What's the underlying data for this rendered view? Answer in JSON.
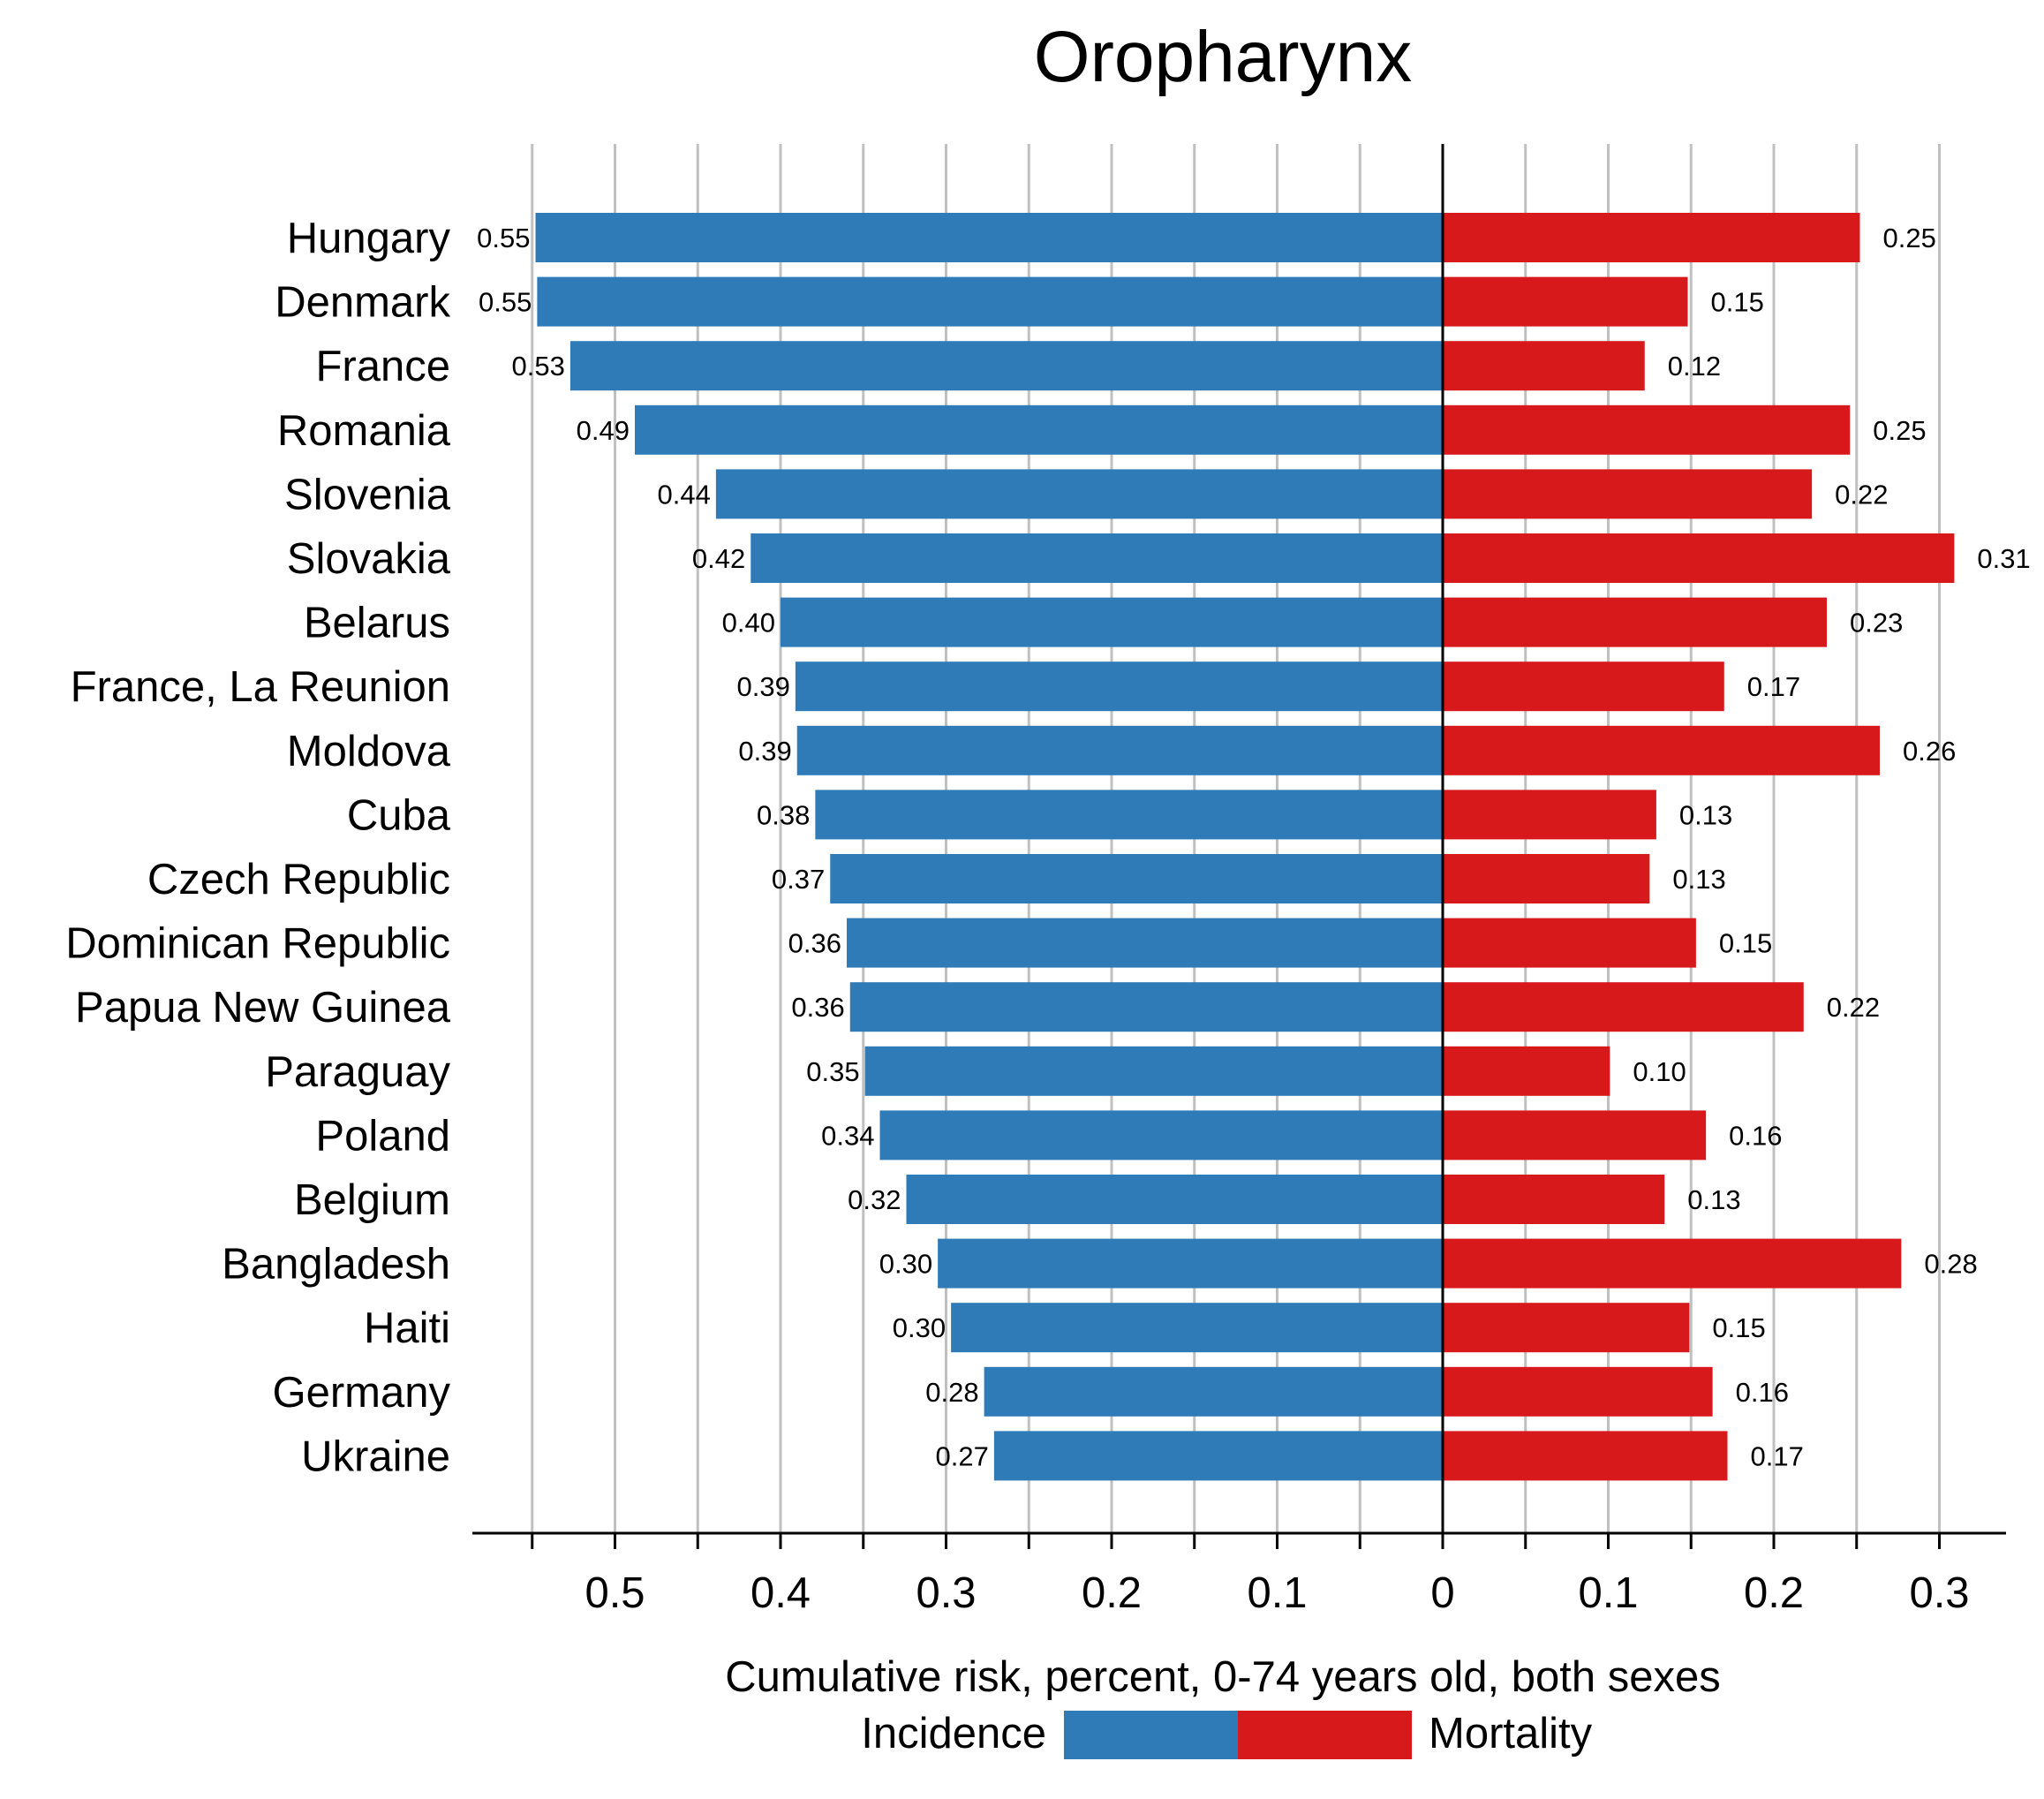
{
  "chart_data": {
    "type": "bar",
    "orientation": "horizontal-diverging",
    "title": "Oropharynx",
    "xlabel": "Cumulative risk, percent, 0-74 years old, both sexes",
    "categories": [
      "Hungary",
      "Denmark",
      "France",
      "Romania",
      "Slovenia",
      "Slovakia",
      "Belarus",
      "France, La Reunion",
      "Moldova",
      "Cuba",
      "Czech Republic",
      "Dominican Republic",
      "Papua New Guinea",
      "Paraguay",
      "Poland",
      "Belgium",
      "Bangladesh",
      "Haiti",
      "Germany",
      "Ukraine"
    ],
    "series": [
      {
        "name": "Incidence",
        "side": "left",
        "color": "#2e7bb8",
        "values": [
          0.548,
          0.547,
          0.527,
          0.488,
          0.439,
          0.418,
          0.4,
          0.391,
          0.39,
          0.379,
          0.37,
          0.36,
          0.358,
          0.349,
          0.34,
          0.324,
          0.305,
          0.297,
          0.277,
          0.271
        ],
        "labels": [
          "0.55",
          "0.55",
          "0.53",
          "0.49",
          "0.44",
          "0.42",
          "0.40",
          "0.39",
          "0.39",
          "0.38",
          "0.37",
          "0.36",
          "0.36",
          "0.35",
          "0.34",
          "0.32",
          "0.30",
          "0.30",
          "0.28",
          "0.27"
        ]
      },
      {
        "name": "Mortality",
        "side": "right",
        "color": "#d7191c",
        "values": [
          0.252,
          0.148,
          0.122,
          0.246,
          0.223,
          0.309,
          0.232,
          0.17,
          0.264,
          0.129,
          0.125,
          0.153,
          0.218,
          0.101,
          0.159,
          0.134,
          0.277,
          0.149,
          0.163,
          0.172
        ],
        "labels": [
          "0.25",
          "0.15",
          "0.12",
          "0.25",
          "0.22",
          "0.31",
          "0.23",
          "0.17",
          "0.26",
          "0.13",
          "0.13",
          "0.15",
          "0.22",
          "0.10",
          "0.16",
          "0.13",
          "0.28",
          "0.15",
          "0.16",
          "0.17"
        ]
      }
    ],
    "xlim_left": [
      0.55,
      0
    ],
    "xlim_right": [
      0,
      0.3
    ],
    "ticks_left": [
      "0.5",
      "0.4",
      "0.3",
      "0.2",
      "0.1"
    ],
    "tick_zero": "0",
    "ticks_right": [
      "0.1",
      "0.2",
      "0.3"
    ],
    "grid": true,
    "legend": {
      "placement": "bottom-center",
      "left_label": "Incidence",
      "right_label": "Mortality"
    }
  }
}
